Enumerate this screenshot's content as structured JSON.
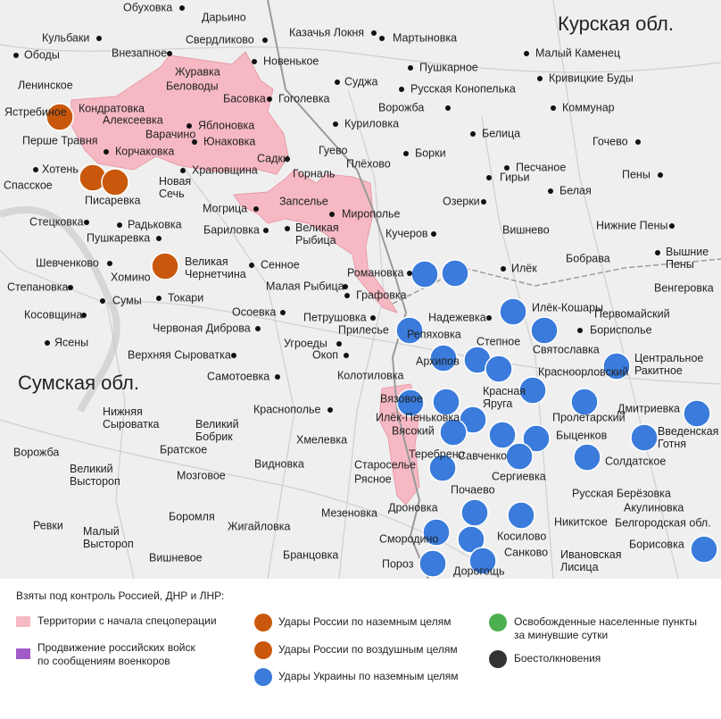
{
  "map": {
    "regions": [
      "Курская обл.",
      "Сумская обл."
    ],
    "places": [
      "Обуховка",
      "Дарьино",
      "Свердликово",
      "Казачья Локня",
      "Мартыновка",
      "Кульбаки",
      "Ободы",
      "Внезапное",
      "Новенькое",
      "Пушкарное",
      "Малый Каменец",
      "Кривицкие Буды",
      "Журавка",
      "Ленинское",
      "Беловоды",
      "Суджа",
      "Русская Конопелька",
      "Басовка",
      "Гоголевка",
      "Ворожба",
      "Коммунар",
      "Кондратовка",
      "Ястребиное",
      "Алексеевка",
      "Яблоновка",
      "Куриловка",
      "Белица",
      "Перше Травня",
      "Варачино",
      "Юнаковка",
      "Гочево",
      "Корчаковка",
      "Садки",
      "Гуево",
      "Борки",
      "Плёхово",
      "Хотень",
      "Храповщина",
      "Горналь",
      "Гирьи",
      "Песчаное",
      "Пены",
      "Спасское",
      "Новая Сечь",
      "Белая",
      "Писаревка",
      "Запселье",
      "Озерки",
      "Мирополье",
      "Могрица",
      "Стецковка",
      "Радьковка",
      "Великая Рыбица",
      "Нижние Пены",
      "Бариловка",
      "Кучеров",
      "Вишнево",
      "Пушкаревка",
      "Шевченково",
      "Великая Чернетчина",
      "Сенное",
      "Илёк",
      "Бобрава",
      "Вышние Пены",
      "Романовка",
      "Хомино",
      "Степановка",
      "Малая Рыбица",
      "Венгеровка",
      "Графовка",
      "Сумы",
      "Токари",
      "Косовщина",
      "Надежевка",
      "Илёк-Кошары",
      "Первомайский",
      "Осоевка",
      "Петрушовка",
      "Червоная Диброва",
      "Репяховка",
      "Прилесье",
      "Степное",
      "Борисполье",
      "Ясены",
      "Угроеды",
      "Святославка",
      "Верхняя Сыроватка",
      "Окоп",
      "Архипов",
      "Красноорловский",
      "Центральное Ракитное",
      "Самотоевка",
      "Колотиловка",
      "Вязовое",
      "Красная Яруга",
      "Краснополье",
      "Илёк-Пеньковка",
      "Дмитриевка",
      "Нижняя Сыроватка",
      "Великий Бобрик",
      "Пролетарский",
      "Вясокий",
      "Быценков",
      "Введенская Готня",
      "Хмелевка",
      "Братское",
      "Ворожба",
      "Теребрено",
      "Савченко",
      "Великий Выстороп",
      "Солдатское",
      "Видновка",
      "Староселье",
      "Мозговое",
      "Рясное",
      "Сергиевка",
      "Почаево",
      "Русская Берёзовка",
      "Дроновка",
      "Мезеновка",
      "Боромля",
      "Никитское",
      "Акулиновка",
      "Белгородская обл.",
      "Ревки",
      "Жигайловка",
      "Малый Выстороп",
      "Смородино",
      "Косилово",
      "Бранцовка",
      "Вишневое",
      "Санково",
      "Ивановская Лисица",
      "Борисовка",
      "Пороз",
      "Дорогощь"
    ]
  },
  "legend": {
    "title": "Взяты под контроль Россией, ДНР и ЛНР:",
    "items": [
      "Территории с начала спецоперации",
      "Продвижение российских войск по сообщениям военкоров",
      "Удары России по наземным целям",
      "Удары России по воздушным целям",
      "Удары Украины по наземным целям",
      "Освобожденные населенные пункты за минувшие сутки",
      "Боестолкновения"
    ]
  }
}
